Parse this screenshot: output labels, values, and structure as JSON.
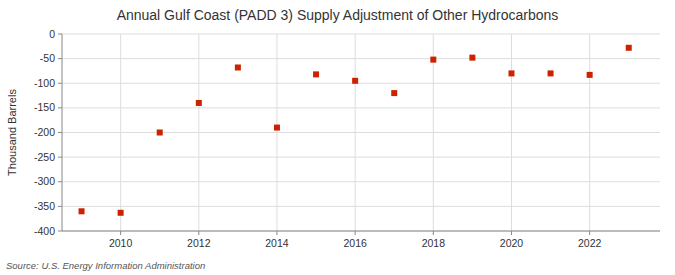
{
  "chart_data": {
    "type": "scatter",
    "title": "Annual Gulf Coast (PADD 3) Supply Adjustment of Other Hydrocarbons",
    "ylabel": "Thousand Barrels",
    "source": "Source: U.S. Energy Information Administration",
    "x": [
      2009,
      2010,
      2011,
      2012,
      2013,
      2014,
      2015,
      2016,
      2017,
      2018,
      2019,
      2020,
      2021,
      2022,
      2023
    ],
    "values": [
      -360,
      -363,
      -200,
      -140,
      -68,
      -190,
      -82,
      -95,
      -120,
      -52,
      -48,
      -80,
      -80,
      -83,
      -28
    ],
    "color": "#cc2200",
    "marker": "square",
    "xlim": [
      2008.5,
      2023.8
    ],
    "xticks": [
      2010,
      2012,
      2014,
      2016,
      2018,
      2020,
      2022
    ],
    "ylim": [
      -400,
      0
    ],
    "yticks": [
      0,
      -50,
      -100,
      -150,
      -200,
      -250,
      -300,
      -350,
      -400
    ],
    "grid": true
  }
}
